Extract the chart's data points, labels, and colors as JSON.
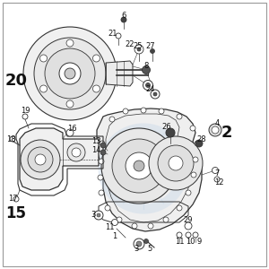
{
  "bg_color": "#ffffff",
  "border_color": "#aaaaaa",
  "line_color": "#333333",
  "label_color": "#111111",
  "wm_color": "#b8cfe8",
  "figsize": [
    3.0,
    3.0
  ],
  "dpi": 100,
  "bold_labels": [
    "2",
    "15",
    "20"
  ]
}
